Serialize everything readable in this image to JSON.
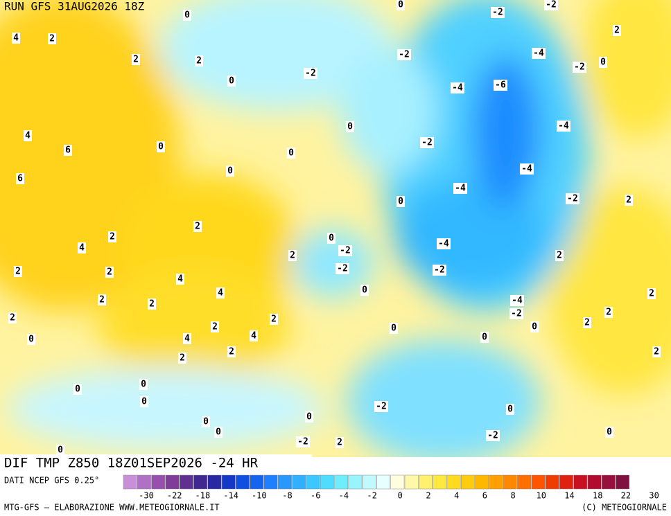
{
  "header": {
    "run": "RUN GFS 31AUG2026 18Z"
  },
  "footer": {
    "title": "DIF TMP Z850 18Z01SEP2026 -24 HR",
    "source": "DATI NCEP GFS 0.25°",
    "website": "MTG-GFS — ELABORAZIONE WWW.METEOGIORNALE.IT",
    "credit": "(C) METEOGIORNALE"
  },
  "legend": {
    "ticks": [
      -30,
      -22,
      -18,
      -14,
      -10,
      -8,
      -6,
      -4,
      -2,
      0,
      2,
      4,
      6,
      8,
      10,
      14,
      18,
      22,
      30
    ]
  },
  "map": {
    "labels": [
      "0",
      "0",
      "-2",
      "-2",
      "2",
      "4",
      "2",
      "2",
      "2",
      "-2",
      "-4",
      "-2",
      "0",
      "-2",
      "0",
      "-4",
      "-6",
      "0",
      "4",
      "6",
      "0",
      "-4",
      "-2",
      "0",
      "0",
      "-4",
      "6",
      "-4",
      "0",
      "-2",
      "2",
      "2",
      "2",
      "0",
      "-4",
      "4",
      "-2",
      "2",
      "2",
      "2",
      "2",
      "-2",
      "-2",
      "4",
      "4",
      "0",
      "2",
      "2",
      "-4",
      "-2",
      "2",
      "2",
      "2",
      "2",
      "2",
      "0",
      "0",
      "2",
      "0",
      "4",
      "4",
      "0",
      "2",
      "2",
      "2",
      "0",
      "0",
      "0",
      "-2",
      "0",
      "0",
      "0",
      "0",
      "-2",
      "0",
      "0",
      "-2",
      "2"
    ]
  }
}
